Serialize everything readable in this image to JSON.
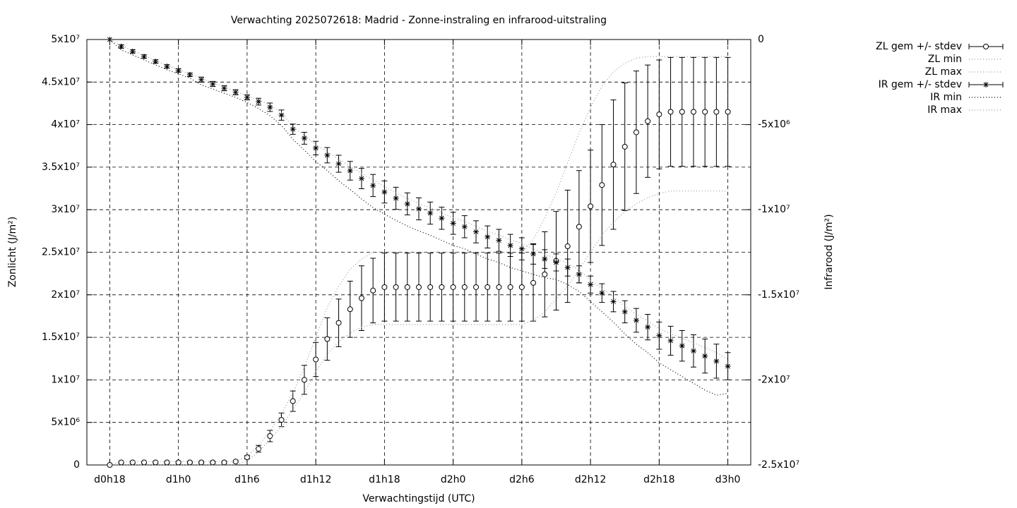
{
  "chart_data": {
    "type": "line",
    "title": "Verwachting 2025072618: Madrid - Zonne-instraling en infrarood-uitstraling",
    "xlabel": "Verwachtingstijd (UTC)",
    "ylabel": "Zonlicht (J/m²)",
    "y2label": "Infrarood (J/m²)",
    "x": [
      18,
      19,
      20,
      21,
      22,
      23,
      24,
      25,
      26,
      27,
      28,
      29,
      30,
      31,
      32,
      33,
      34,
      35,
      36,
      37,
      38,
      39,
      40,
      41,
      42,
      43,
      44,
      45,
      46,
      47,
      48,
      49,
      50,
      51,
      52,
      53,
      54,
      55,
      56,
      57,
      58,
      59,
      60,
      61,
      62,
      63,
      64,
      65,
      66,
      67,
      68,
      69,
      70,
      71,
      72
    ],
    "xlim": [
      16,
      74
    ],
    "xticks": [
      {
        "value": 18,
        "label": "d0h18"
      },
      {
        "value": 24,
        "label": "d1h0"
      },
      {
        "value": 30,
        "label": "d1h6"
      },
      {
        "value": 36,
        "label": "d1h12"
      },
      {
        "value": 42,
        "label": "d1h18"
      },
      {
        "value": 48,
        "label": "d2h0"
      },
      {
        "value": 54,
        "label": "d2h6"
      },
      {
        "value": 60,
        "label": "d2h12"
      },
      {
        "value": 66,
        "label": "d2h18"
      },
      {
        "value": 72,
        "label": "d3h0"
      }
    ],
    "ylim": [
      0,
      50000000.0
    ],
    "yticks": [
      0,
      {
        "value": 5000000.0,
        "label": "5x10⁶"
      },
      {
        "value": 10000000.0,
        "label": "1x10⁷"
      },
      {
        "value": 15000000.0,
        "label": "1.5x10⁷"
      },
      {
        "value": 20000000.0,
        "label": "2x10⁷"
      },
      {
        "value": 25000000.0,
        "label": "2.5x10⁷"
      },
      {
        "value": 30000000.0,
        "label": "3x10⁷"
      },
      {
        "value": 35000000.0,
        "label": "3.5x10⁷"
      },
      {
        "value": 40000000.0,
        "label": "4x10⁷"
      },
      {
        "value": 45000000.0,
        "label": "4.5x10⁷"
      },
      {
        "value": 50000000.0,
        "label": "5x10⁷"
      }
    ],
    "y2lim": [
      -25000000.0,
      0
    ],
    "y2ticks": [
      0,
      {
        "value": -5000000.0,
        "label": "-5x10⁶"
      },
      {
        "value": -10000000.0,
        "label": "-1x10⁷"
      },
      {
        "value": -15000000.0,
        "label": "-1.5x10⁷"
      },
      {
        "value": -20000000.0,
        "label": "-2x10⁷"
      },
      {
        "value": -25000000.0,
        "label": "-2.5x10⁷"
      }
    ],
    "grid": true,
    "legend": "right",
    "series": [
      {
        "name": "ZL gem +/- stdev",
        "color": "#000000",
        "marker": "circle",
        "values": [
          0,
          300000.0,
          300000.0,
          300000.0,
          300000.0,
          300000.0,
          300000.0,
          300000.0,
          300000.0,
          300000.0,
          300000.0,
          400000.0,
          900000.0,
          1900000.0,
          3400000.0,
          5300000.0,
          7500000.0,
          10000000.0,
          12400000.0,
          14800000.0,
          16700000.0,
          18300000.0,
          19600000.0,
          20500000.0,
          20900000.0,
          20900000.0,
          20900000.0,
          20900000.0,
          20900000.0,
          20900000.0,
          20900000.0,
          20900000.0,
          20900000.0,
          20900000.0,
          20900000.0,
          20900000.0,
          20900000.0,
          21400000.0,
          22400000.0,
          24000000.0,
          25700000.0,
          28000000.0,
          30400000.0,
          32900000.0,
          35300000.0,
          37400000.0,
          39100000.0,
          40400000.0,
          41200000.0,
          41500000.0,
          41500000.0,
          41500000.0,
          41500000.0,
          41500000.0,
          41500000.0
        ],
        "errors": [
          0,
          100000.0,
          100000.0,
          100000.0,
          100000.0,
          100000.0,
          100000.0,
          100000.0,
          100000.0,
          100000.0,
          100000.0,
          100000.0,
          200000.0,
          400000.0,
          660000.0,
          800000.0,
          1200000.0,
          1700000.0,
          2000000.0,
          2500000.0,
          2800000.0,
          3300000.0,
          3800000.0,
          3800000.0,
          4000000.0,
          4000000.0,
          4000000.0,
          4000000.0,
          4000000.0,
          4000000.0,
          4000000.0,
          4000000.0,
          4000000.0,
          4000000.0,
          4000000.0,
          4000000.0,
          4000000.0,
          4500000.0,
          5000000.0,
          5800000.0,
          6600000.0,
          6600000.0,
          6600000.0,
          7100000.0,
          7600000.0,
          7500000.0,
          7200000.0,
          6600000.0,
          6400000.0,
          6400000.0,
          6400000.0,
          6400000.0,
          6400000.0,
          6400000.0,
          6400000.0
        ]
      },
      {
        "name": "ZL min",
        "color": "#999999",
        "dash": "dotted",
        "values": [
          0,
          0,
          0,
          0,
          0,
          0,
          0,
          0,
          0,
          0,
          0,
          0,
          500000.0,
          1500000.0,
          3000000.0,
          4500000.0,
          6500000.0,
          8500000.0,
          11000000.0,
          13000000.0,
          14500000.0,
          15500000.0,
          16200000.0,
          16500000.0,
          16500000.0,
          16500000.0,
          16500000.0,
          16500000.0,
          16500000.0,
          16500000.0,
          16500000.0,
          16500000.0,
          16500000.0,
          16500000.0,
          16500000.0,
          16500000.0,
          16500000.0,
          17000000.0,
          18000000.0,
          19500000.0,
          21000000.0,
          23000000.0,
          25000000.0,
          27000000.0,
          28500000.0,
          29800000.0,
          30700000.0,
          31400000.0,
          31900000.0,
          32200000.0,
          32200000.0,
          32200000.0,
          32200000.0,
          32200000.0,
          32200000.0
        ]
      },
      {
        "name": "ZL max",
        "color": "#999999",
        "dash": "dotted",
        "values": [
          0,
          400000.0,
          400000.0,
          400000.0,
          400000.0,
          400000.0,
          400000.0,
          400000.0,
          400000.0,
          400000.0,
          400000.0,
          400000.0,
          1000000.0,
          2300000.0,
          4000000.0,
          6000000.0,
          8500000.0,
          11500000.0,
          15000000.0,
          18500000.0,
          21000000.0,
          23000000.0,
          24200000.0,
          25000000.0,
          25000000.0,
          25000000.0,
          25000000.0,
          25000000.0,
          25000000.0,
          25000000.0,
          25000000.0,
          25000000.0,
          25000000.0,
          25000000.0,
          25000000.0,
          25000000.0,
          25000000.0,
          26500000.0,
          29000000.0,
          32000000.0,
          35500000.0,
          39000000.0,
          42000000.0,
          44500000.0,
          46200000.0,
          47200000.0,
          47800000.0,
          48000000.0,
          48000000.0,
          48000000.0,
          48000000.0,
          48000000.0,
          48000000.0,
          48000000.0,
          48000000.0
        ]
      },
      {
        "name": "IR gem +/- stdev",
        "color": "#000000",
        "marker": "star",
        "axis": "y2",
        "values": [
          0,
          -410000.0,
          -700000.0,
          -1000000.0,
          -1290000.0,
          -1580000.0,
          -1820000.0,
          -2070000.0,
          -2360000.0,
          -2610000.0,
          -2860000.0,
          -3100000.0,
          -3400000.0,
          -3650000.0,
          -3980000.0,
          -4440000.0,
          -5270000.0,
          -5800000.0,
          -6380000.0,
          -6800000.0,
          -7300000.0,
          -7710000.0,
          -8170000.0,
          -8580000.0,
          -8960000.0,
          -9330000.0,
          -9660000.0,
          -9950000.0,
          -10200000.0,
          -10500000.0,
          -10800000.0,
          -11000000.0,
          -11300000.0,
          -11600000.0,
          -11800000.0,
          -12100000.0,
          -12300000.0,
          -12600000.0,
          -12900000.0,
          -13100000.0,
          -13400000.0,
          -13800000.0,
          -14400000.0,
          -14900000.0,
          -15400000.0,
          -16000000.0,
          -16500000.0,
          -16900000.0,
          -17400000.0,
          -17700000.0,
          -18000000.0,
          -18300000.0,
          -18600000.0,
          -18900000.0,
          -19200000.0
        ],
        "errors": [
          0,
          100000.0,
          100000.0,
          100000.0,
          100000.0,
          100000.0,
          100000.0,
          100000.0,
          150000.0,
          150000.0,
          150000.0,
          150000.0,
          150000.0,
          200000.0,
          250000.0,
          300000.0,
          300000.0,
          350000.0,
          400000.0,
          450000.0,
          500000.0,
          550000.0,
          600000.0,
          650000.0,
          650000.0,
          650000.0,
          650000.0,
          650000.0,
          650000.0,
          650000.0,
          650000.0,
          650000.0,
          650000.0,
          650000.0,
          650000.0,
          650000.0,
          650000.0,
          600000.0,
          550000.0,
          500000.0,
          500000.0,
          500000.0,
          500000.0,
          550000.0,
          600000.0,
          650000.0,
          700000.0,
          750000.0,
          800000.0,
          850000.0,
          900000.0,
          950000.0,
          1000000.0,
          1000000.0,
          800000.0
        ]
      },
      {
        "name": "IR min",
        "color": "#000000",
        "dash": "dotted",
        "axis": "y2",
        "values": [
          0,
          -610000.0,
          -900000.0,
          -1200000.0,
          -1490000.0,
          -1780000.0,
          -2020000.0,
          -2270000.0,
          -2660000.0,
          -2910000.0,
          -3160000.0,
          -3400000.0,
          -3700000.0,
          -4050000.0,
          -4480000.0,
          -5040000.0,
          -5870000.0,
          -6500000.0,
          -7180000.0,
          -7700000.0,
          -8300000.0,
          -8810000.0,
          -9370000.0,
          -9880000.0,
          -10260000.0,
          -10630000.0,
          -10960000.0,
          -11250000.0,
          -11500000.0,
          -11800000.0,
          -12100000.0,
          -12300000.0,
          -12600000.0,
          -12900000.0,
          -13100000.0,
          -13400000.0,
          -13600000.0,
          -13800000.0,
          -14000000.0,
          -14100000.0,
          -14400000.0,
          -14800000.0,
          -15400000.0,
          -16000000.0,
          -16600000.0,
          -17300000.0,
          -17900000.0,
          -18400000.0,
          -19000000.0,
          -19400000.0,
          -19800000.0,
          -20200000.0,
          -20600000.0,
          -20900000.0,
          -20800000.0
        ]
      },
      {
        "name": "IR max",
        "color": "#999999",
        "dash": "dotted",
        "axis": "y2",
        "values": [
          0,
          -360000.0,
          -650000.0,
          -950000.0,
          -1240000.0,
          -1530000.0,
          -1770000.0,
          -2020000.0,
          -2290000.0,
          -2540000.0,
          -2790000.0,
          -3030000.0,
          -3330000.0,
          -3550000.0,
          -3860000.0,
          -4290000.0,
          -5120000.0,
          -5630000.0,
          -6180000.0,
          -6580000.0,
          -7050000.0,
          -7440000.0,
          -7870000.0,
          -8260000.0,
          -8640000.0,
          -9010000.0,
          -9340000.0,
          -9630000.0,
          -9880000.0,
          -10180000.0,
          -10480000.0,
          -10680000.0,
          -10980000.0,
          -11280000.0,
          -11480000.0,
          -11780000.0,
          -11980000.0,
          -12300000.0,
          -12630000.0,
          -12850000.0,
          -13150000.0,
          -13550000.0,
          -14150000.0,
          -14630000.0,
          -15100000.0,
          -15680000.0,
          -16150000.0,
          -16530000.0,
          -17000000.0,
          -17280000.0,
          -17550000.0,
          -17830000.0,
          -18100000.0,
          -18400000.0,
          -18800000.0
        ]
      }
    ]
  }
}
